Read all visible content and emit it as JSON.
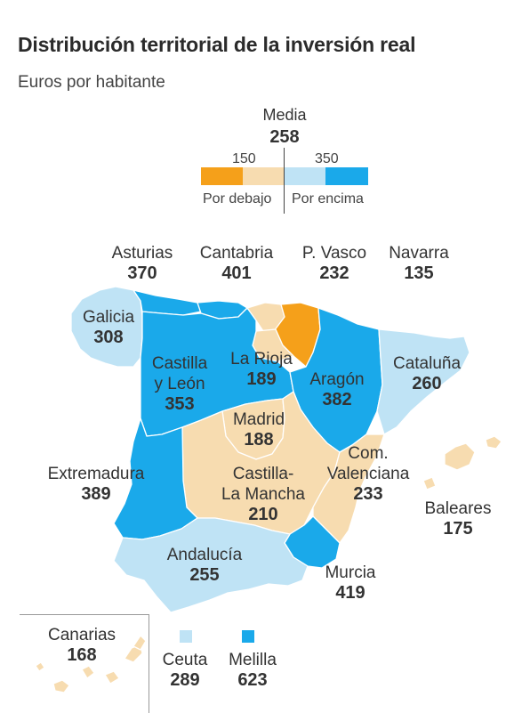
{
  "title": "Distribución territorial de la inversión real",
  "subtitle": "Euros por habitante",
  "legend": {
    "mean_label": "Media",
    "mean_value": "258",
    "tick_low": "150",
    "tick_high": "350",
    "below_label": "Por debajo",
    "above_label": "Por encima",
    "colors": {
      "strong_below": "#f5a01a",
      "mild_below": "#f7dcb0",
      "mild_above": "#bfe3f5",
      "strong_above": "#1aa9ea"
    }
  },
  "regions": {
    "asturias": {
      "name": "Asturias",
      "value": "370"
    },
    "cantabria": {
      "name": "Cantabria",
      "value": "401"
    },
    "pvasco": {
      "name": "P. Vasco",
      "value": "232"
    },
    "navarra": {
      "name": "Navarra",
      "value": "135"
    },
    "galicia": {
      "name": "Galicia",
      "value": "308"
    },
    "castilla_leon": {
      "name1": "Castilla",
      "name2": "y León",
      "value": "353"
    },
    "rioja": {
      "name": "La Rioja",
      "value": "189"
    },
    "aragon": {
      "name": "Aragón",
      "value": "382"
    },
    "cataluna": {
      "name": "Cataluña",
      "value": "260"
    },
    "madrid": {
      "name": "Madrid",
      "value": "188"
    },
    "valenciana": {
      "name1": "Com.",
      "name2": "Valenciana",
      "value": "233"
    },
    "extremadura": {
      "name": "Extremadura",
      "value": "389"
    },
    "castilla_mancha": {
      "name1": "Castilla-",
      "name2": "La Mancha",
      "value": "210"
    },
    "baleares": {
      "name": "Baleares",
      "value": "175"
    },
    "andalucia": {
      "name": "Andalucía",
      "value": "255"
    },
    "murcia": {
      "name": "Murcia",
      "value": "419"
    },
    "canarias": {
      "name": "Canarias",
      "value": "168"
    },
    "ceuta": {
      "name": "Ceuta",
      "value": "289"
    },
    "melilla": {
      "name": "Melilla",
      "value": "623"
    }
  }
}
